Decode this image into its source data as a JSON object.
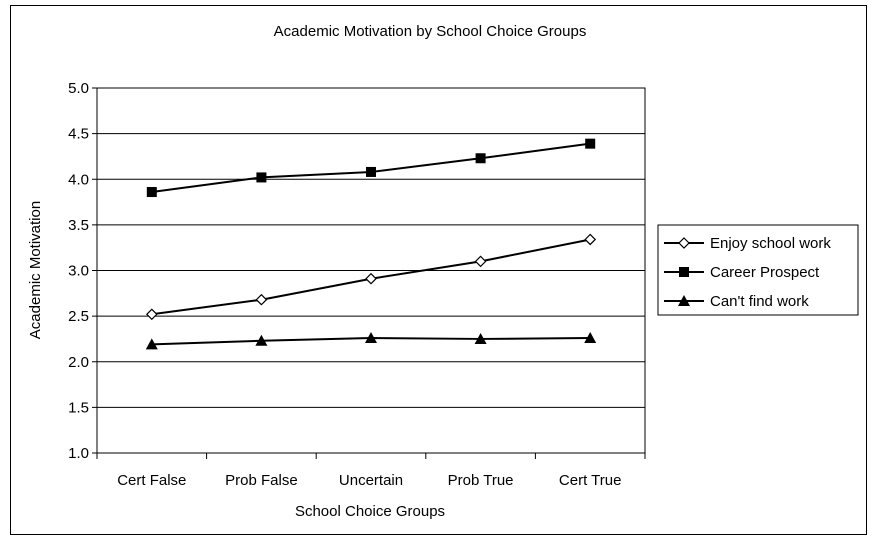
{
  "chart_data": {
    "type": "line",
    "title": "Academic Motivation by School Choice Groups",
    "xlabel": "School Choice Groups",
    "ylabel": "Academic Motivation",
    "categories": [
      "Cert False",
      "Prob False",
      "Uncertain",
      "Prob True",
      "Cert True"
    ],
    "ylim": [
      1.0,
      5.0
    ],
    "yticks": [
      "1.0",
      "1.5",
      "2.0",
      "2.5",
      "3.0",
      "3.5",
      "4.0",
      "4.5",
      "5.0"
    ],
    "grid": "horizontal",
    "legend_position": "right",
    "series": [
      {
        "name": "Enjoy school work",
        "marker": "diamond-open",
        "color": "#000000",
        "values": [
          2.52,
          2.68,
          2.91,
          3.1,
          3.34
        ]
      },
      {
        "name": "Career Prospect",
        "marker": "square-filled",
        "color": "#000000",
        "values": [
          3.86,
          4.02,
          4.08,
          4.23,
          4.39
        ]
      },
      {
        "name": "Can't find work",
        "marker": "triangle-filled",
        "color": "#000000",
        "values": [
          2.19,
          2.23,
          2.26,
          2.25,
          2.26
        ]
      }
    ]
  }
}
